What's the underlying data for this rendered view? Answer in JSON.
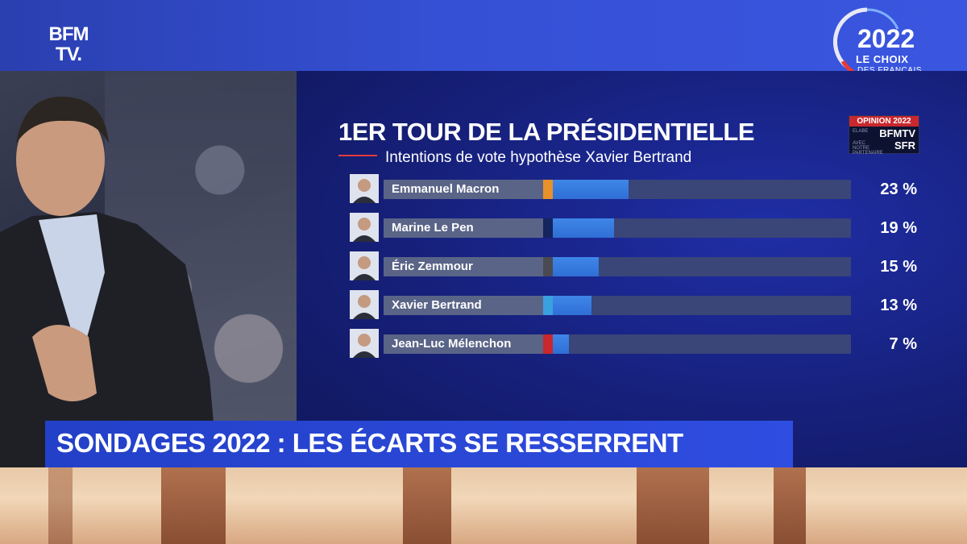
{
  "logo": {
    "line1": "BFM",
    "line2": "TV."
  },
  "badge": {
    "year": "2022",
    "line1": "LE CHOIX",
    "line2": "DES FRANÇAIS"
  },
  "opinion_badge": {
    "top": "OPINION 2022",
    "brand1": "BFMTV",
    "brand2": "SFR",
    "small1": "ELABE",
    "small2": "AVEC NOTRE PARTENAIRE"
  },
  "banner": {
    "text": "SONDAGES 2022 : LES ÉCARTS SE RESSERRENT"
  },
  "colors": {
    "bar": "#3f86e8",
    "track": "#3a4578",
    "panel": "#16207a",
    "banner": "#2a45d0"
  },
  "chart_data": {
    "type": "bar",
    "title": "1ER TOUR DE LA PRÉSIDENTIELLE",
    "subtitle": "Intentions de vote hypothèse Xavier Bertrand",
    "xlim": [
      0,
      100
    ],
    "categories": [
      "Emmanuel Macron",
      "Marine Le Pen",
      "Éric Zemmour",
      "Xavier Bertrand",
      "Jean-Luc Mélenchon"
    ],
    "values": [
      23,
      19,
      15,
      13,
      7
    ],
    "value_labels": [
      "23 %",
      "19 %",
      "15 %",
      "13 %",
      "7 %"
    ],
    "party_colors": [
      "#e8902a",
      "#14245e",
      "#4a4a52",
      "#3aa0e0",
      "#c8282e"
    ]
  }
}
